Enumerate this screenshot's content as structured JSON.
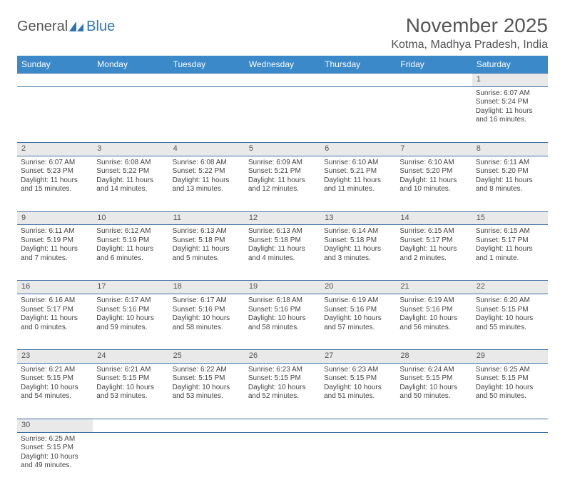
{
  "logo": {
    "text1": "General",
    "text2": "Blue"
  },
  "title": "November 2025",
  "location": "Kotma, Madhya Pradesh, India",
  "colors": {
    "header_bg": "#3b89c9",
    "header_text": "#ffffff",
    "daynum_bg": "#e9e9e9",
    "rule": "#3b6fa8",
    "logo_gray": "#555555",
    "logo_blue": "#2e74b5"
  },
  "columns": [
    "Sunday",
    "Monday",
    "Tuesday",
    "Wednesday",
    "Thursday",
    "Friday",
    "Saturday"
  ],
  "weeks": [
    [
      null,
      null,
      null,
      null,
      null,
      null,
      {
        "n": 1,
        "sr": "6:07 AM",
        "ss": "5:24 PM",
        "dl": "11 hours and 16 minutes."
      }
    ],
    [
      {
        "n": 2,
        "sr": "6:07 AM",
        "ss": "5:23 PM",
        "dl": "11 hours and 15 minutes."
      },
      {
        "n": 3,
        "sr": "6:08 AM",
        "ss": "5:22 PM",
        "dl": "11 hours and 14 minutes."
      },
      {
        "n": 4,
        "sr": "6:08 AM",
        "ss": "5:22 PM",
        "dl": "11 hours and 13 minutes."
      },
      {
        "n": 5,
        "sr": "6:09 AM",
        "ss": "5:21 PM",
        "dl": "11 hours and 12 minutes."
      },
      {
        "n": 6,
        "sr": "6:10 AM",
        "ss": "5:21 PM",
        "dl": "11 hours and 11 minutes."
      },
      {
        "n": 7,
        "sr": "6:10 AM",
        "ss": "5:20 PM",
        "dl": "11 hours and 10 minutes."
      },
      {
        "n": 8,
        "sr": "6:11 AM",
        "ss": "5:20 PM",
        "dl": "11 hours and 8 minutes."
      }
    ],
    [
      {
        "n": 9,
        "sr": "6:11 AM",
        "ss": "5:19 PM",
        "dl": "11 hours and 7 minutes."
      },
      {
        "n": 10,
        "sr": "6:12 AM",
        "ss": "5:19 PM",
        "dl": "11 hours and 6 minutes."
      },
      {
        "n": 11,
        "sr": "6:13 AM",
        "ss": "5:18 PM",
        "dl": "11 hours and 5 minutes."
      },
      {
        "n": 12,
        "sr": "6:13 AM",
        "ss": "5:18 PM",
        "dl": "11 hours and 4 minutes."
      },
      {
        "n": 13,
        "sr": "6:14 AM",
        "ss": "5:18 PM",
        "dl": "11 hours and 3 minutes."
      },
      {
        "n": 14,
        "sr": "6:15 AM",
        "ss": "5:17 PM",
        "dl": "11 hours and 2 minutes."
      },
      {
        "n": 15,
        "sr": "6:15 AM",
        "ss": "5:17 PM",
        "dl": "11 hours and 1 minute."
      }
    ],
    [
      {
        "n": 16,
        "sr": "6:16 AM",
        "ss": "5:17 PM",
        "dl": "11 hours and 0 minutes."
      },
      {
        "n": 17,
        "sr": "6:17 AM",
        "ss": "5:16 PM",
        "dl": "10 hours and 59 minutes."
      },
      {
        "n": 18,
        "sr": "6:17 AM",
        "ss": "5:16 PM",
        "dl": "10 hours and 58 minutes."
      },
      {
        "n": 19,
        "sr": "6:18 AM",
        "ss": "5:16 PM",
        "dl": "10 hours and 58 minutes."
      },
      {
        "n": 20,
        "sr": "6:19 AM",
        "ss": "5:16 PM",
        "dl": "10 hours and 57 minutes."
      },
      {
        "n": 21,
        "sr": "6:19 AM",
        "ss": "5:16 PM",
        "dl": "10 hours and 56 minutes."
      },
      {
        "n": 22,
        "sr": "6:20 AM",
        "ss": "5:15 PM",
        "dl": "10 hours and 55 minutes."
      }
    ],
    [
      {
        "n": 23,
        "sr": "6:21 AM",
        "ss": "5:15 PM",
        "dl": "10 hours and 54 minutes."
      },
      {
        "n": 24,
        "sr": "6:21 AM",
        "ss": "5:15 PM",
        "dl": "10 hours and 53 minutes."
      },
      {
        "n": 25,
        "sr": "6:22 AM",
        "ss": "5:15 PM",
        "dl": "10 hours and 53 minutes."
      },
      {
        "n": 26,
        "sr": "6:23 AM",
        "ss": "5:15 PM",
        "dl": "10 hours and 52 minutes."
      },
      {
        "n": 27,
        "sr": "6:23 AM",
        "ss": "5:15 PM",
        "dl": "10 hours and 51 minutes."
      },
      {
        "n": 28,
        "sr": "6:24 AM",
        "ss": "5:15 PM",
        "dl": "10 hours and 50 minutes."
      },
      {
        "n": 29,
        "sr": "6:25 AM",
        "ss": "5:15 PM",
        "dl": "10 hours and 50 minutes."
      }
    ],
    [
      {
        "n": 30,
        "sr": "6:25 AM",
        "ss": "5:15 PM",
        "dl": "10 hours and 49 minutes."
      },
      null,
      null,
      null,
      null,
      null,
      null
    ]
  ],
  "labels": {
    "sunrise": "Sunrise:",
    "sunset": "Sunset:",
    "daylight": "Daylight:"
  }
}
